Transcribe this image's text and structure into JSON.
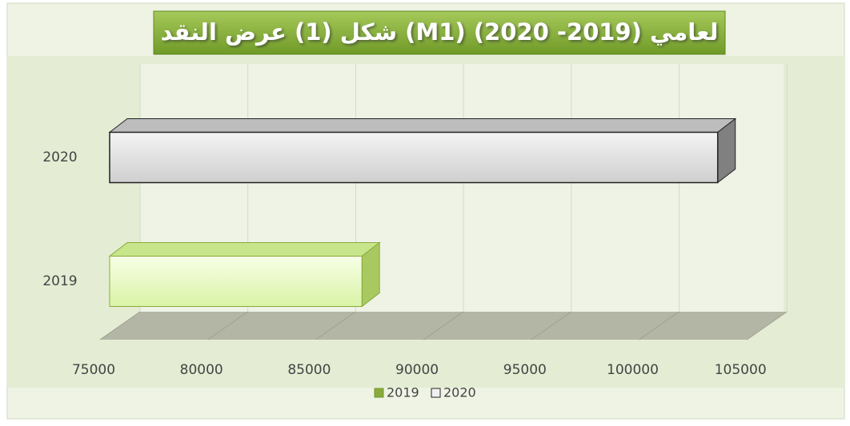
{
  "chart_data": {
    "type": "bar3d_horizontal",
    "title": "شكل (1) عرض النقد (M1) لعامي (2019- 2020)",
    "categories": [
      "2019",
      "2020"
    ],
    "series": [
      {
        "name": "2019",
        "color": "#eaf9c8",
        "values": [
          86700,
          null
        ]
      },
      {
        "name": "2020",
        "color": "#e2e2e2",
        "values": [
          null,
          103200
        ]
      }
    ],
    "xlim": [
      75000,
      105000
    ],
    "xticks": [
      75000,
      80000,
      85000,
      90000,
      95000,
      100000,
      105000
    ],
    "grid": true,
    "legend": "bottom"
  }
}
